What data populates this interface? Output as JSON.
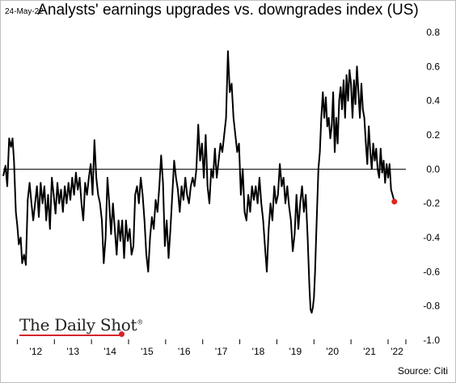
{
  "header": {
    "date": "24-May-22",
    "title": "Analysts' earnings upgrades vs. downgrades index (US)"
  },
  "footer": {
    "source": "Source: Citi",
    "logo_text": "The Daily Shot",
    "logo_mark": "®"
  },
  "colors": {
    "line": "#000000",
    "highlight": "#e0251c",
    "logo_accent": "#d4242a"
  },
  "chart_data": {
    "type": "line",
    "title": "Analysts' earnings upgrades vs. downgrades index (US)",
    "xlabel": "",
    "ylabel": "",
    "xlim": [
      2011.62,
      2022.48
    ],
    "ylim": [
      -1.0,
      0.8
    ],
    "x_ticks": [
      {
        "value": 2012.0,
        "label": "'12"
      },
      {
        "value": 2013.0,
        "label": "'13"
      },
      {
        "value": 2014.0,
        "label": "'14"
      },
      {
        "value": 2015.0,
        "label": "'15"
      },
      {
        "value": 2016.0,
        "label": "'16"
      },
      {
        "value": 2017.0,
        "label": "'17"
      },
      {
        "value": 2018.0,
        "label": "'18"
      },
      {
        "value": 2019.0,
        "label": "'19"
      },
      {
        "value": 2020.0,
        "label": "'20"
      },
      {
        "value": 2021.0,
        "label": "'21"
      },
      {
        "value": 2022.0,
        "label": "'22"
      }
    ],
    "y_ticks": [
      {
        "value": 0.8,
        "label": "0.8"
      },
      {
        "value": 0.6,
        "label": "0.6"
      },
      {
        "value": 0.4,
        "label": "0.4"
      },
      {
        "value": 0.2,
        "label": "0.2"
      },
      {
        "value": 0.0,
        "label": "0.0"
      },
      {
        "value": -0.2,
        "label": "-0.2"
      },
      {
        "value": -0.4,
        "label": "-0.4"
      },
      {
        "value": -0.6,
        "label": "-0.6"
      },
      {
        "value": -0.8,
        "label": "-0.8"
      },
      {
        "value": -1.0,
        "label": "-1.0"
      }
    ],
    "zero_line": true,
    "grid": false,
    "series": [
      {
        "values": [
          [
            2011.62,
            -0.04
          ],
          [
            2011.68,
            0.02
          ],
          [
            2011.73,
            -0.1
          ],
          [
            2011.78,
            0.18
          ],
          [
            2011.83,
            0.13
          ],
          [
            2011.87,
            0.18
          ],
          [
            2011.91,
            0.05
          ],
          [
            2011.96,
            -0.25
          ],
          [
            2012.0,
            -0.33
          ],
          [
            2012.04,
            -0.44
          ],
          [
            2012.09,
            -0.4
          ],
          [
            2012.13,
            -0.55
          ],
          [
            2012.18,
            -0.5
          ],
          [
            2012.23,
            -0.56
          ],
          [
            2012.28,
            -0.18
          ],
          [
            2012.33,
            -0.08
          ],
          [
            2012.38,
            -0.2
          ],
          [
            2012.43,
            -0.3
          ],
          [
            2012.48,
            -0.2
          ],
          [
            2012.53,
            -0.1
          ],
          [
            2012.58,
            -0.28
          ],
          [
            2012.63,
            -0.08
          ],
          [
            2012.68,
            -0.2
          ],
          [
            2012.73,
            -0.1
          ],
          [
            2012.78,
            -0.3
          ],
          [
            2012.83,
            -0.15
          ],
          [
            2012.88,
            -0.35
          ],
          [
            2012.93,
            -0.05
          ],
          [
            2012.98,
            -0.15
          ],
          [
            2013.03,
            -0.26
          ],
          [
            2013.08,
            -0.08
          ],
          [
            2013.13,
            -0.2
          ],
          [
            2013.18,
            -0.12
          ],
          [
            2013.23,
            -0.25
          ],
          [
            2013.28,
            -0.1
          ],
          [
            2013.33,
            -0.2
          ],
          [
            2013.38,
            -0.08
          ],
          [
            2013.43,
            -0.18
          ],
          [
            2013.48,
            -0.05
          ],
          [
            2013.53,
            -0.15
          ],
          [
            2013.58,
            -0.02
          ],
          [
            2013.63,
            -0.12
          ],
          [
            2013.68,
            -0.05
          ],
          [
            2013.73,
            -0.2
          ],
          [
            2013.78,
            -0.3
          ],
          [
            2013.83,
            -0.08
          ],
          [
            2013.88,
            -0.15
          ],
          [
            2013.93,
            -0.05
          ],
          [
            2013.98,
            0.03
          ],
          [
            2014.03,
            -0.15
          ],
          [
            2014.08,
            0.17
          ],
          [
            2014.13,
            -0.05
          ],
          [
            2014.18,
            -0.15
          ],
          [
            2014.23,
            -0.2
          ],
          [
            2014.28,
            -0.3
          ],
          [
            2014.33,
            -0.55
          ],
          [
            2014.38,
            -0.4
          ],
          [
            2014.43,
            -0.05
          ],
          [
            2014.48,
            -0.2
          ],
          [
            2014.53,
            -0.38
          ],
          [
            2014.58,
            -0.2
          ],
          [
            2014.63,
            -0.35
          ],
          [
            2014.68,
            -0.5
          ],
          [
            2014.73,
            -0.3
          ],
          [
            2014.78,
            -0.42
          ],
          [
            2014.83,
            -0.3
          ],
          [
            2014.88,
            -0.52
          ],
          [
            2014.93,
            -0.3
          ],
          [
            2014.98,
            -0.42
          ],
          [
            2015.03,
            -0.35
          ],
          [
            2015.08,
            -0.5
          ],
          [
            2015.13,
            -0.45
          ],
          [
            2015.18,
            -0.15
          ],
          [
            2015.23,
            -0.1
          ],
          [
            2015.28,
            -0.2
          ],
          [
            2015.33,
            -0.05
          ],
          [
            2015.38,
            -0.15
          ],
          [
            2015.43,
            -0.3
          ],
          [
            2015.48,
            -0.5
          ],
          [
            2015.53,
            -0.6
          ],
          [
            2015.58,
            -0.4
          ],
          [
            2015.63,
            -0.28
          ],
          [
            2015.68,
            -0.35
          ],
          [
            2015.73,
            -0.18
          ],
          [
            2015.78,
            -0.25
          ],
          [
            2015.83,
            -0.1
          ],
          [
            2015.88,
            0.08
          ],
          [
            2015.93,
            -0.08
          ],
          [
            2015.98,
            -0.45
          ],
          [
            2016.03,
            -0.3
          ],
          [
            2016.08,
            -0.52
          ],
          [
            2016.13,
            -0.35
          ],
          [
            2016.18,
            -0.15
          ],
          [
            2016.23,
            0.05
          ],
          [
            2016.28,
            -0.05
          ],
          [
            2016.33,
            -0.12
          ],
          [
            2016.38,
            -0.25
          ],
          [
            2016.43,
            -0.1
          ],
          [
            2016.48,
            -0.18
          ],
          [
            2016.53,
            -0.05
          ],
          [
            2016.58,
            -0.15
          ],
          [
            2016.63,
            -0.2
          ],
          [
            2016.68,
            -0.1
          ],
          [
            2016.73,
            -0.05
          ],
          [
            2016.78,
            -0.1
          ],
          [
            2016.83,
            0.0
          ],
          [
            2016.88,
            0.26
          ],
          [
            2016.93,
            0.05
          ],
          [
            2016.98,
            0.15
          ],
          [
            2017.03,
            -0.05
          ],
          [
            2017.08,
            0.2
          ],
          [
            2017.13,
            -0.1
          ],
          [
            2017.18,
            -0.2
          ],
          [
            2017.23,
            0.0
          ],
          [
            2017.28,
            -0.05
          ],
          [
            2017.33,
            0.12
          ],
          [
            2017.38,
            -0.05
          ],
          [
            2017.43,
            0.05
          ],
          [
            2017.48,
            0.15
          ],
          [
            2017.53,
            0.1
          ],
          [
            2017.58,
            0.2
          ],
          [
            2017.63,
            0.3
          ],
          [
            2017.68,
            0.69
          ],
          [
            2017.73,
            0.45
          ],
          [
            2017.78,
            0.5
          ],
          [
            2017.83,
            0.3
          ],
          [
            2017.88,
            0.2
          ],
          [
            2017.93,
            0.1
          ],
          [
            2017.98,
            0.15
          ],
          [
            2018.03,
            -0.15
          ],
          [
            2018.08,
            0.0
          ],
          [
            2018.13,
            -0.25
          ],
          [
            2018.18,
            -0.3
          ],
          [
            2018.23,
            -0.15
          ],
          [
            2018.28,
            -0.25
          ],
          [
            2018.33,
            -0.1
          ],
          [
            2018.38,
            -0.18
          ],
          [
            2018.43,
            -0.1
          ],
          [
            2018.48,
            -0.2
          ],
          [
            2018.53,
            -0.05
          ],
          [
            2018.58,
            -0.2
          ],
          [
            2018.63,
            -0.3
          ],
          [
            2018.68,
            -0.45
          ],
          [
            2018.73,
            -0.6
          ],
          [
            2018.78,
            -0.35
          ],
          [
            2018.83,
            -0.2
          ],
          [
            2018.88,
            -0.3
          ],
          [
            2018.93,
            -0.1
          ],
          [
            2018.98,
            -0.2
          ],
          [
            2019.03,
            -0.15
          ],
          [
            2019.08,
            0.03
          ],
          [
            2019.13,
            -0.1
          ],
          [
            2019.18,
            -0.05
          ],
          [
            2019.23,
            -0.2
          ],
          [
            2019.28,
            -0.1
          ],
          [
            2019.33,
            -0.22
          ],
          [
            2019.38,
            -0.3
          ],
          [
            2019.43,
            -0.48
          ],
          [
            2019.48,
            -0.38
          ],
          [
            2019.53,
            -0.15
          ],
          [
            2019.58,
            -0.35
          ],
          [
            2019.63,
            -0.2
          ],
          [
            2019.68,
            -0.1
          ],
          [
            2019.73,
            -0.25
          ],
          [
            2019.78,
            -0.15
          ],
          [
            2019.83,
            -0.4
          ],
          [
            2019.88,
            -0.7
          ],
          [
            2019.91,
            -0.82
          ],
          [
            2019.94,
            -0.84
          ],
          [
            2019.97,
            -0.81
          ],
          [
            2020.0,
            -0.75
          ],
          [
            2020.03,
            -0.6
          ],
          [
            2020.06,
            -0.4
          ],
          [
            2020.09,
            -0.2
          ],
          [
            2020.12,
            0.0
          ],
          [
            2020.16,
            0.1
          ],
          [
            2020.2,
            0.3
          ],
          [
            2020.24,
            0.45
          ],
          [
            2020.28,
            0.3
          ],
          [
            2020.32,
            0.42
          ],
          [
            2020.36,
            0.25
          ],
          [
            2020.4,
            0.3
          ],
          [
            2020.44,
            0.18
          ],
          [
            2020.48,
            0.25
          ],
          [
            2020.52,
            0.45
          ],
          [
            2020.56,
            0.1
          ],
          [
            2020.6,
            0.3
          ],
          [
            2020.64,
            0.15
          ],
          [
            2020.68,
            0.4
          ],
          [
            2020.72,
            0.48
          ],
          [
            2020.76,
            0.35
          ],
          [
            2020.8,
            0.52
          ],
          [
            2020.84,
            0.3
          ],
          [
            2020.88,
            0.55
          ],
          [
            2020.92,
            0.4
          ],
          [
            2020.96,
            0.58
          ],
          [
            2021.0,
            0.5
          ],
          [
            2021.04,
            0.3
          ],
          [
            2021.08,
            0.52
          ],
          [
            2021.12,
            0.38
          ],
          [
            2021.16,
            0.6
          ],
          [
            2021.2,
            0.45
          ],
          [
            2021.24,
            0.3
          ],
          [
            2021.28,
            0.5
          ],
          [
            2021.32,
            0.35
          ],
          [
            2021.36,
            0.3
          ],
          [
            2021.4,
            0.15
          ],
          [
            2021.44,
            0.03
          ],
          [
            2021.48,
            0.25
          ],
          [
            2021.52,
            0.1
          ],
          [
            2021.56,
            0.0
          ],
          [
            2021.6,
            0.15
          ],
          [
            2021.64,
            0.05
          ],
          [
            2021.68,
            0.12
          ],
          [
            2021.72,
            0.0
          ],
          [
            2021.76,
            -0.05
          ],
          [
            2021.8,
            0.12
          ],
          [
            2021.84,
            -0.02
          ],
          [
            2021.88,
            0.05
          ],
          [
            2021.92,
            -0.08
          ],
          [
            2021.96,
            0.03
          ],
          [
            2022.0,
            -0.05
          ],
          [
            2022.04,
            0.03
          ],
          [
            2022.08,
            -0.12
          ],
          [
            2022.12,
            -0.15
          ],
          [
            2022.17,
            -0.19
          ]
        ]
      }
    ],
    "highlight_point": [
      2022.17,
      -0.19
    ]
  }
}
